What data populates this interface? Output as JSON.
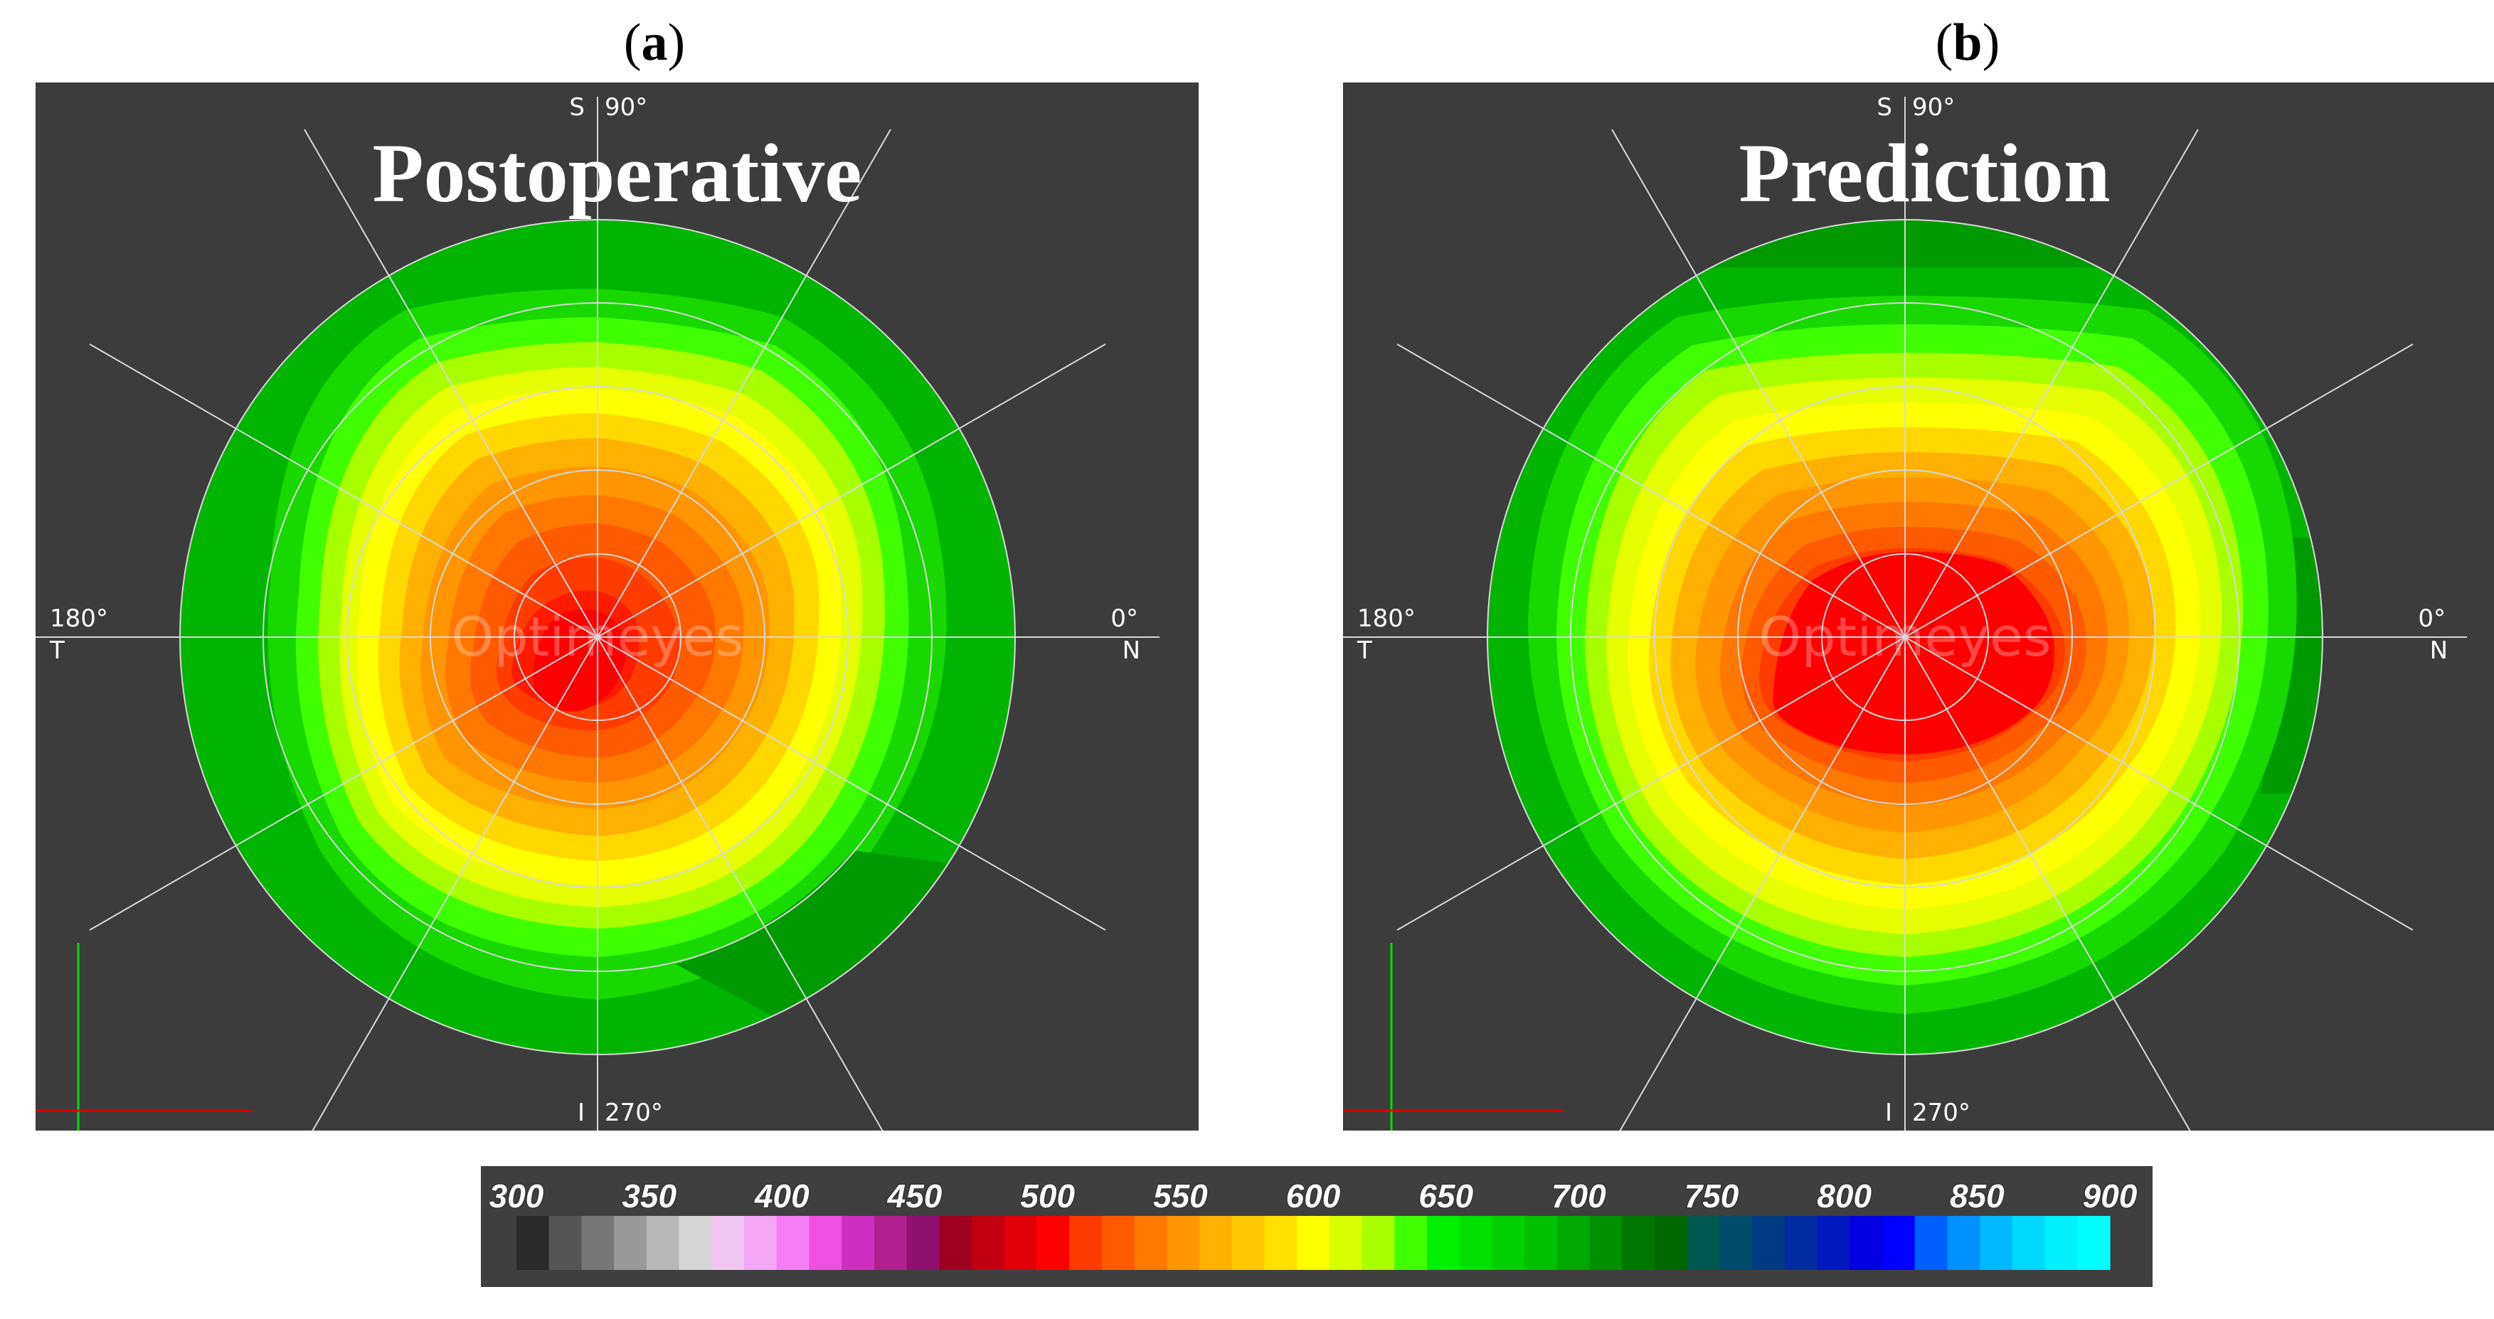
{
  "panels": [
    {
      "label_open": "(",
      "label_letter": "a",
      "label_close": ")",
      "title": "Postoperative",
      "watermark": "Optimeyes",
      "axis_labels": {
        "top": "S",
        "top_deg": "90°",
        "bottom": "I",
        "bottom_deg": "270°",
        "left_deg": "180°",
        "left": "T",
        "right_deg": "0°",
        "right": "N"
      }
    },
    {
      "label_open": "(",
      "label_letter": "b",
      "label_close": ")",
      "title": "Prediction",
      "watermark": "Optimeyes",
      "axis_labels": {
        "top": "S",
        "top_deg": "90°",
        "bottom": "I",
        "bottom_deg": "270°",
        "left_deg": "180°",
        "left": "T",
        "right_deg": "0°",
        "right": "N"
      }
    }
  ],
  "colorbar": {
    "ticks": [
      "300",
      "350",
      "400",
      "450",
      "500",
      "550",
      "600",
      "650",
      "700",
      "750",
      "800",
      "850",
      "900"
    ],
    "colors": [
      "#2a2a2a",
      "#555555",
      "#777777",
      "#999999",
      "#b8b8b8",
      "#d6d6d6",
      "#f2c8f2",
      "#f5a6f5",
      "#f57ef5",
      "#f050e0",
      "#d030c0",
      "#b02090",
      "#901070",
      "#a00020",
      "#c00010",
      "#e00008",
      "#ff0000",
      "#ff3c00",
      "#ff5a00",
      "#ff7800",
      "#ff9600",
      "#ffb000",
      "#ffc800",
      "#ffe000",
      "#ffff00",
      "#d8ff00",
      "#a8ff00",
      "#40ff00",
      "#00f000",
      "#00e000",
      "#00d000",
      "#00c000",
      "#00a800",
      "#009000",
      "#007800",
      "#006800",
      "#005850",
      "#004a6a",
      "#003a80",
      "#002aa0",
      "#0018c0",
      "#0000e0",
      "#0000ff",
      "#0060ff",
      "#0090ff",
      "#00b8ff",
      "#00d8ff",
      "#00f0ff",
      "#00ffff"
    ]
  }
}
